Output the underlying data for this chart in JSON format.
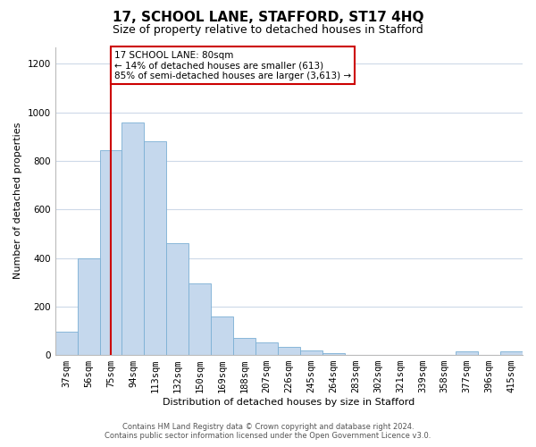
{
  "title": "17, SCHOOL LANE, STAFFORD, ST17 4HQ",
  "subtitle": "Size of property relative to detached houses in Stafford",
  "xlabel": "Distribution of detached houses by size in Stafford",
  "ylabel": "Number of detached properties",
  "bar_labels": [
    "37sqm",
    "56sqm",
    "75sqm",
    "94sqm",
    "113sqm",
    "132sqm",
    "150sqm",
    "169sqm",
    "188sqm",
    "207sqm",
    "226sqm",
    "245sqm",
    "264sqm",
    "283sqm",
    "302sqm",
    "321sqm",
    "339sqm",
    "358sqm",
    "377sqm",
    "396sqm",
    "415sqm"
  ],
  "bar_values": [
    95,
    400,
    845,
    960,
    880,
    460,
    295,
    160,
    70,
    52,
    35,
    18,
    8,
    0,
    0,
    0,
    0,
    0,
    14,
    0,
    14
  ],
  "bar_color": "#c5d8ed",
  "bar_edge_color": "#7bafd4",
  "vline_color": "#cc0000",
  "vline_x_index": 2,
  "annotation_text_line1": "17 SCHOOL LANE: 80sqm",
  "annotation_text_line2": "← 14% of detached houses are smaller (613)",
  "annotation_text_line3": "85% of semi-detached houses are larger (3,613) →",
  "annotation_box_color": "#ffffff",
  "annotation_box_edge": "#cc0000",
  "ylim": [
    0,
    1270
  ],
  "yticks": [
    0,
    200,
    400,
    600,
    800,
    1000,
    1200
  ],
  "footer1": "Contains HM Land Registry data © Crown copyright and database right 2024.",
  "footer2": "Contains public sector information licensed under the Open Government Licence v3.0.",
  "bg_color": "#ffffff",
  "grid_color": "#cdd9e8",
  "title_fontsize": 11,
  "subtitle_fontsize": 9,
  "axis_label_fontsize": 8,
  "tick_fontsize": 7.5
}
